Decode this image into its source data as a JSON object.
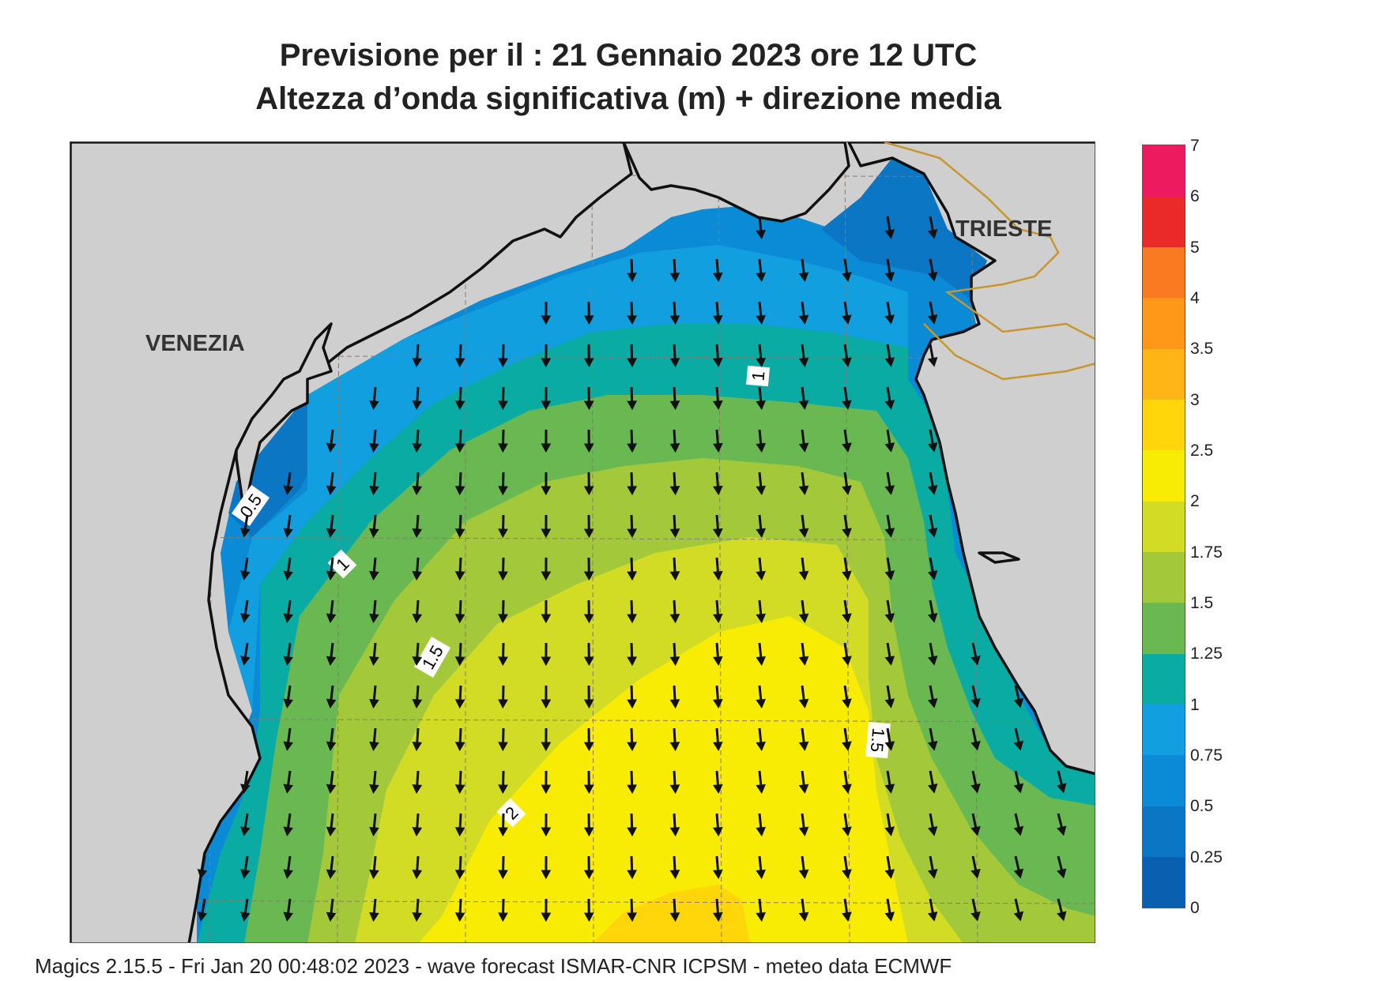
{
  "header": {
    "title_line1": "Previsione per il  :  21  Gennaio  2023   ore 12 UTC",
    "title_line2": "Altezza d’onda significativa (m) + direzione media"
  },
  "map": {
    "cities": [
      {
        "name": "VENEZIA"
      },
      {
        "name": "TRIESTE"
      }
    ],
    "contour_labels": [
      "0.5",
      "1",
      "1.5",
      "2",
      "1",
      "1.5"
    ],
    "arrow_direction": "south-southwest",
    "colors": {
      "land": "#cfcfcf",
      "coast": "#111111",
      "border": "#c8962e",
      "grid": "#8a7a6a",
      "arrow": "#111111"
    }
  },
  "legend": {
    "levels": [
      "0",
      "0.25",
      "0.5",
      "0.75",
      "1",
      "1.25",
      "1.5",
      "1.75",
      "2",
      "2.5",
      "3",
      "3.5",
      "4",
      "5",
      "6",
      "7"
    ],
    "colors": [
      "#0a5fb0",
      "#0a76c4",
      "#0b8ad6",
      "#119fe0",
      "#0aaba3",
      "#6ab851",
      "#a3c93b",
      "#d2dc25",
      "#f8ec05",
      "#ffd60a",
      "#ffb515",
      "#ff9818",
      "#f97a20",
      "#ea2a28",
      "#ee1a60"
    ]
  },
  "footer": {
    "text": "Magics 2.15.5 - Fri Jan 20 00:48:02 2023 - wave forecast  ISMAR-CNR  ICPSM - meteo data    ECMWF"
  }
}
